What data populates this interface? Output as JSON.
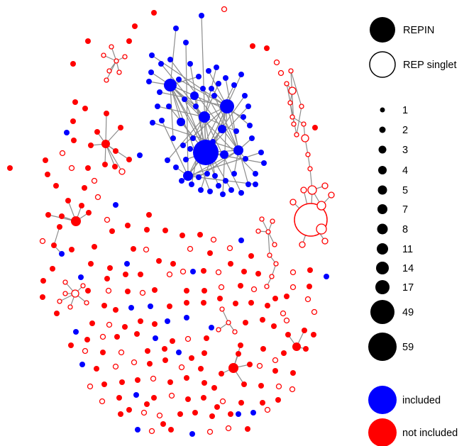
{
  "colors": {
    "included": "#0000ff",
    "not_included": "#ff0000",
    "edge": "#8c8c8c",
    "legend": "#000000"
  },
  "legend": {
    "shape_keys": [
      {
        "label": "REPIN",
        "style": "filled"
      },
      {
        "label": "REP singlet",
        "style": "hollow"
      }
    ],
    "size_keys": [
      {
        "label": "1"
      },
      {
        "label": "2"
      },
      {
        "label": "3"
      },
      {
        "label": "4"
      },
      {
        "label": "5"
      },
      {
        "label": "7"
      },
      {
        "label": "8"
      },
      {
        "label": "11"
      },
      {
        "label": "14"
      },
      {
        "label": "17"
      },
      {
        "label": "49"
      },
      {
        "label": "59"
      }
    ],
    "color_keys": [
      {
        "label": "included",
        "color_key": "included"
      },
      {
        "label": "not included",
        "color_key": "not_included"
      }
    ]
  }
}
